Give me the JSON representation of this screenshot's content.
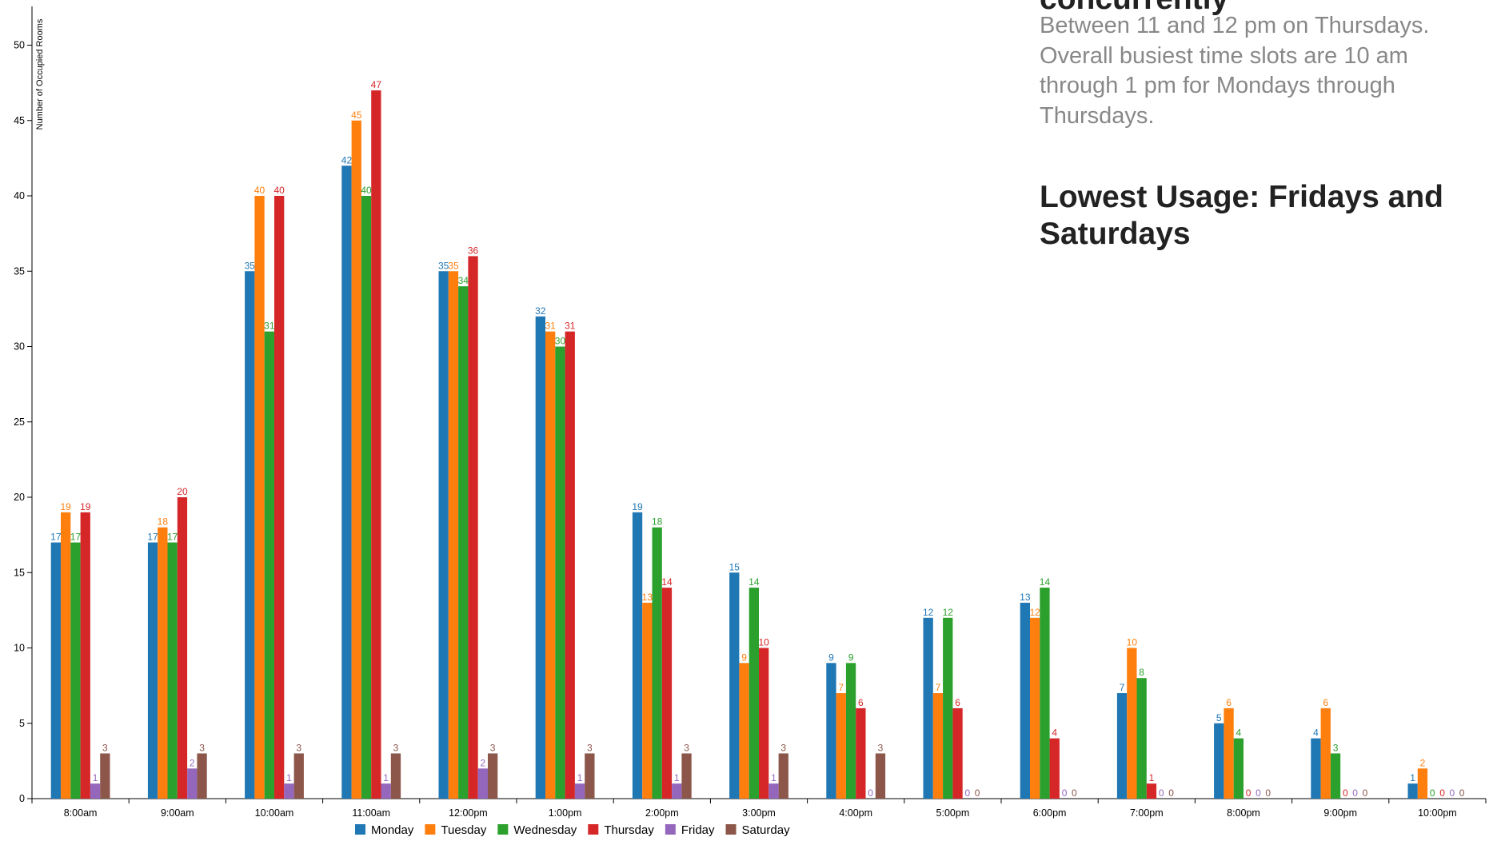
{
  "side_text": {
    "heading_top": "concurrently",
    "paragraph": "Between 11 and 12 pm on Thursdays. Overall busiest time slots are 10 am through 1 pm for Mondays through Thursdays.",
    "heading_low": "Lowest Usage: Fridays and Saturdays"
  },
  "chart_data": {
    "type": "bar",
    "title": "",
    "xlabel": "",
    "ylabel": "Number of Occupied Rooms",
    "ylim": [
      0,
      52
    ],
    "yticks": [
      0,
      5,
      10,
      15,
      20,
      25,
      30,
      35,
      40,
      45,
      50
    ],
    "grid": false,
    "legend_position": "bottom",
    "categories": [
      "8:00am",
      "9:00am",
      "10:00am",
      "11:00am",
      "12:00pm",
      "1:00pm",
      "2:00pm",
      "3:00pm",
      "4:00pm",
      "5:00pm",
      "6:00pm",
      "7:00pm",
      "8:00pm",
      "9:00pm",
      "10:00pm"
    ],
    "series": [
      {
        "name": "Monday",
        "color": "#1f77b4",
        "values": [
          17,
          17,
          35,
          42,
          35,
          32,
          19,
          15,
          9,
          12,
          13,
          7,
          5,
          4,
          1
        ]
      },
      {
        "name": "Tuesday",
        "color": "#ff7f0e",
        "values": [
          19,
          18,
          40,
          45,
          35,
          31,
          13,
          9,
          7,
          7,
          12,
          10,
          6,
          6,
          2
        ]
      },
      {
        "name": "Wednesday",
        "color": "#2ca02c",
        "values": [
          17,
          17,
          31,
          40,
          34,
          30,
          18,
          14,
          9,
          12,
          14,
          8,
          4,
          3,
          0
        ]
      },
      {
        "name": "Thursday",
        "color": "#d62728",
        "values": [
          19,
          20,
          40,
          47,
          36,
          31,
          14,
          10,
          6,
          6,
          4,
          1,
          0,
          0,
          0
        ]
      },
      {
        "name": "Friday",
        "color": "#9467bd",
        "values": [
          1,
          2,
          1,
          1,
          2,
          1,
          1,
          1,
          0,
          0,
          0,
          0,
          0,
          0,
          0
        ]
      },
      {
        "name": "Saturday",
        "color": "#8c564b",
        "values": [
          3,
          3,
          3,
          3,
          3,
          3,
          3,
          3,
          3,
          0,
          0,
          0,
          0,
          0,
          0
        ]
      }
    ]
  }
}
